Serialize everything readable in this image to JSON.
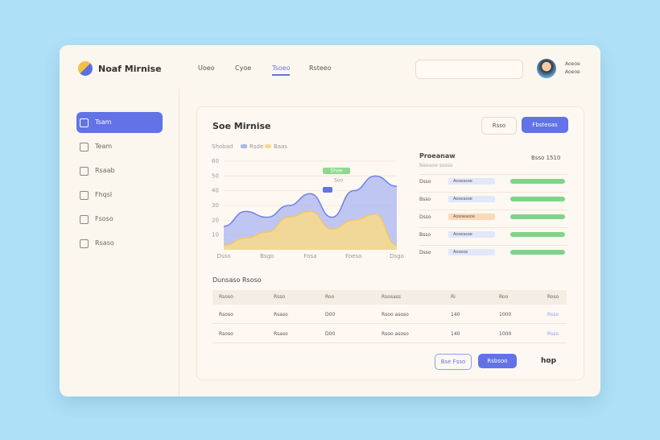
{
  "header": {
    "brand": "Noaf Mirnise",
    "nav": [
      "Uoeo",
      "Cyoe",
      "Tsoeo",
      "Rsteeo"
    ],
    "user": [
      "Aoeoe",
      "Aoeoe"
    ]
  },
  "sidebar": {
    "items": [
      "Tsam",
      "Team",
      "Rsaab",
      "Fhqsl",
      "Fsoso",
      "Rsaso"
    ]
  },
  "panel": {
    "title": "Soe Mirnise",
    "buttons": [
      "Rsso",
      "Fbsteoas"
    ]
  },
  "chart": {
    "type": "area",
    "label": "Shobad",
    "categories": [
      "Dsso",
      null,
      "Bsgo",
      null,
      "Fosa",
      null,
      "Foeso",
      null,
      "Dsgo"
    ],
    "series": [
      {
        "name": "Rsde",
        "color": "#a9b6f2",
        "values": [
          16,
          26,
          22,
          30,
          38,
          22,
          40,
          50,
          43
        ]
      },
      {
        "name": "Baas",
        "color": "#f6d98e",
        "values": [
          3,
          8,
          12,
          22,
          26,
          14,
          20,
          24,
          3
        ]
      }
    ],
    "ylim": [
      0,
      60
    ],
    "yticks": [
      10,
      20,
      30,
      40,
      50,
      60
    ],
    "annotations": [
      "Shoe",
      "Soo"
    ]
  },
  "list": {
    "title": "Proeanaw",
    "subtitle": "Neeaoe sosso",
    "meta": "Bsso 1510",
    "rows": [
      [
        "Dsso",
        "Aoseasoe"
      ],
      [
        "Bsso",
        "Aoseasoe"
      ],
      [
        "Dsso",
        "Aosoeasoe"
      ],
      [
        "Bsso",
        "Aoseasoe"
      ],
      [
        "Dsso",
        "Aoseoe"
      ]
    ]
  },
  "table": {
    "title": "Dunsaso Rsoso",
    "headers": [
      "Rsoso",
      "Rsso",
      "Roo",
      "Rsosass",
      "Ri",
      "Roo",
      "Roso"
    ],
    "rows": [
      [
        "Rsoso",
        "Rsaso",
        "D00",
        "Rsoo asoso",
        "140",
        "1000",
        "Rsso"
      ],
      [
        "Rsoso",
        "Rsaso",
        "D00",
        "Rsoo asoso",
        "140",
        "1000",
        "Rsso"
      ]
    ]
  },
  "footer": {
    "buttons": [
      "Bse Fsso",
      "Rsbsoo"
    ],
    "page": "hop"
  }
}
